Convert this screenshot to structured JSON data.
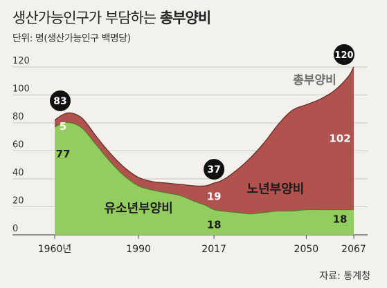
{
  "chart_data": {
    "type": "area",
    "title_prefix": "생산가능인구가 부담하는",
    "title_bold": "총부양비",
    "subtitle": "단위: 명(생산가능인구 백명당)",
    "source": "자료: 통계청",
    "ylim": [
      0,
      120
    ],
    "yticks": [
      "0",
      "20",
      "40",
      "60",
      "80",
      "100",
      "120"
    ],
    "xticks": [
      {
        "x": 1960,
        "label": "1960년"
      },
      {
        "x": 1990,
        "label": "1990"
      },
      {
        "x": 2017,
        "label": "2017"
      },
      {
        "x": 2050,
        "label": "2050"
      },
      {
        "x": 2067,
        "label": "2067"
      }
    ],
    "x": [
      1960,
      1963,
      1966,
      1970,
      1975,
      1980,
      1985,
      1990,
      1995,
      2000,
      2005,
      2010,
      2014,
      2017,
      2020,
      2025,
      2030,
      2035,
      2040,
      2045,
      2050,
      2055,
      2060,
      2065,
      2067
    ],
    "series": [
      {
        "name": "유소년부양비",
        "color": "#93cc5f",
        "values": [
          77,
          80,
          80,
          76,
          64,
          52,
          42,
          35,
          32,
          30,
          28,
          24,
          21,
          18,
          17,
          16,
          15,
          16,
          17,
          17,
          18,
          18,
          18,
          18,
          18
        ]
      },
      {
        "name": "노년부양비",
        "color": "#b0534e",
        "values": [
          5,
          6,
          7,
          7,
          6,
          6,
          6,
          6,
          6,
          7,
          8,
          11,
          14,
          19,
          22,
          30,
          40,
          50,
          62,
          72,
          75,
          79,
          85,
          95,
          102
        ]
      }
    ],
    "total_name": "총부양비",
    "callouts": [
      {
        "x": 1960,
        "value": "83"
      },
      {
        "x": 2017,
        "value": "37"
      },
      {
        "x": 2067,
        "value": "120"
      }
    ],
    "value_labels": [
      {
        "x": 1960,
        "series": "노년부양비",
        "text": "5"
      },
      {
        "x": 1960,
        "series": "유소년부양비",
        "text": "77"
      },
      {
        "x": 2017,
        "series": "노년부양비",
        "text": "19"
      },
      {
        "x": 2017,
        "series": "유소년부양비",
        "text": "18"
      },
      {
        "x": 2067,
        "series": "노년부양비",
        "text": "102"
      },
      {
        "x": 2067,
        "series": "유소년부양비",
        "text": "18"
      }
    ]
  }
}
